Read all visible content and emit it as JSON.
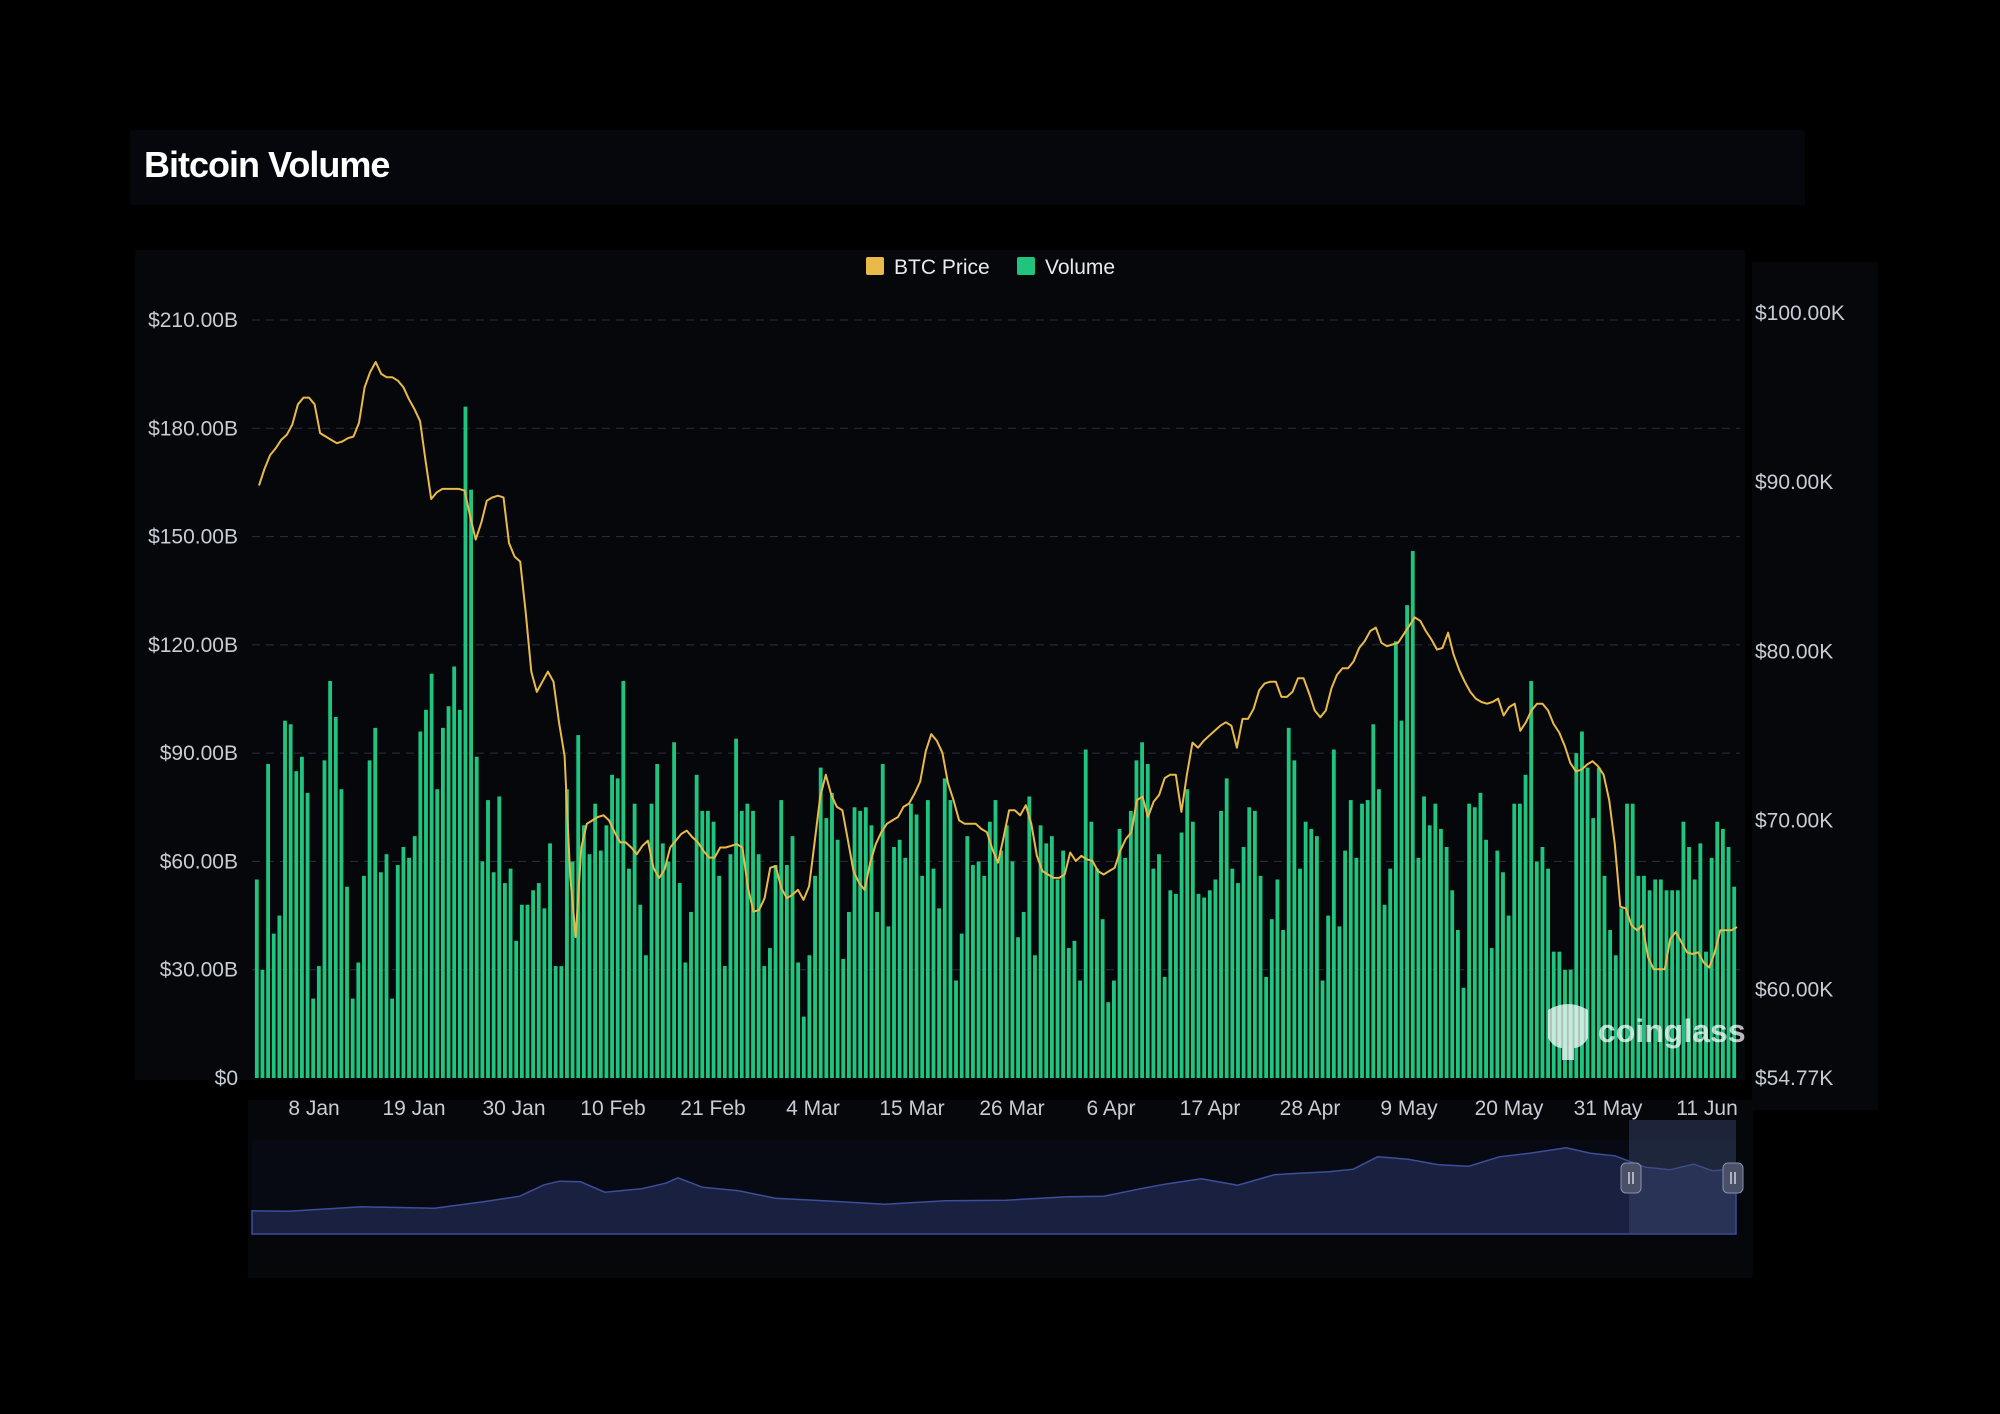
{
  "title": "Bitcoin Volume",
  "brand": "coinglass",
  "chart_data": {
    "type": "bar",
    "x_tick_labels": [
      "8 Jan",
      "19 Jan",
      "30 Jan",
      "10 Feb",
      "21 Feb",
      "4 Mar",
      "15 Mar",
      "26 Mar",
      "6 Apr",
      "17 Apr",
      "28 Apr",
      "9 May",
      "20 May",
      "31 May",
      "11 Jun"
    ],
    "ylim": [
      0,
      210
    ],
    "y_tick_labels": [
      "$0",
      "$30.00B",
      "$60.00B",
      "$90.00B",
      "$120.00B",
      "$150.00B",
      "$180.00B",
      "$210.00B"
    ],
    "y2_tick_labels": [
      "$54.77K",
      "$60.00K",
      "$70.00K",
      "$80.00K",
      "$90.00K",
      "$100.00K"
    ],
    "y2_tick_values": [
      54.77,
      60,
      70,
      80,
      90,
      100
    ],
    "y2lim": [
      54.77,
      100
    ],
    "grid": true,
    "legend_position": "top-center",
    "series": [
      {
        "name": "BTC Price",
        "color": "#e9b949",
        "axis": "right",
        "unit": "$K",
        "values": [
          89.8,
          90.8,
          91.6,
          92.0,
          92.5,
          92.8,
          93.4,
          94.6,
          95.0,
          95.0,
          94.6,
          92.9,
          92.7,
          92.5,
          92.3,
          92.4,
          92.6,
          92.7,
          93.5,
          95.6,
          96.5,
          97.1,
          96.4,
          96.2,
          96.2,
          96.0,
          95.6,
          94.9,
          94.3,
          93.6,
          91.2,
          89.0,
          89.4,
          89.6,
          89.6,
          89.6,
          89.6,
          89.5,
          88.0,
          86.6,
          87.6,
          88.9,
          89.1,
          89.2,
          89.1,
          86.4,
          85.6,
          85.3,
          82.3,
          78.8,
          77.6,
          78.2,
          78.8,
          78.2,
          75.8,
          73.8,
          66.7,
          63.1,
          68.4,
          69.8,
          70.0,
          70.2,
          70.3,
          70.0,
          69.3,
          68.7,
          68.7,
          68.4,
          68.0,
          68.5,
          68.8,
          67.2,
          66.6,
          67.1,
          68.4,
          68.8,
          69.2,
          69.4,
          69.0,
          68.7,
          68.2,
          67.8,
          67.8,
          68.4,
          68.4,
          68.5,
          68.6,
          68.4,
          66.0,
          64.6,
          64.7,
          65.4,
          67.2,
          67.3,
          66.0,
          65.4,
          65.6,
          65.9,
          65.3,
          66.1,
          68.7,
          71.4,
          72.7,
          71.5,
          70.8,
          70.6,
          68.8,
          67.0,
          66.3,
          65.9,
          67.5,
          68.6,
          69.3,
          69.8,
          70.0,
          70.2,
          70.8,
          71.0,
          71.6,
          72.3,
          74.1,
          75.1,
          74.7,
          74.0,
          72.2,
          71.2,
          70.0,
          69.8,
          69.8,
          69.8,
          69.5,
          69.3,
          68.3,
          67.5,
          69.0,
          70.6,
          70.6,
          70.3,
          70.9,
          69.8,
          67.9,
          67.0,
          66.8,
          66.6,
          66.6,
          66.8,
          68.1,
          67.6,
          67.9,
          67.7,
          67.6,
          67.0,
          66.8,
          67.0,
          67.2,
          68.2,
          68.9,
          69.3,
          71.2,
          71.4,
          70.2,
          71.1,
          71.5,
          72.5,
          72.7,
          72.7,
          70.5,
          72.7,
          74.6,
          74.3,
          74.7,
          75.0,
          75.3,
          75.6,
          75.8,
          75.6,
          74.3,
          76.0,
          76.0,
          76.6,
          77.7,
          78.1,
          78.2,
          78.2,
          77.3,
          77.3,
          77.6,
          78.4,
          78.4,
          77.5,
          76.5,
          76.1,
          76.5,
          77.8,
          78.6,
          79.0,
          79.0,
          79.4,
          80.2,
          80.6,
          81.2,
          81.4,
          80.5,
          80.3,
          80.4,
          80.5,
          81.0,
          81.5,
          82.0,
          81.8,
          81.2,
          80.7,
          80.1,
          80.2,
          81.1,
          79.8,
          78.9,
          78.2,
          77.6,
          77.2,
          77.0,
          76.9,
          77.0,
          77.2,
          76.2,
          76.7,
          76.9,
          75.3,
          75.8,
          76.5,
          76.9,
          76.9,
          76.5,
          75.7,
          75.2,
          74.4,
          73.4,
          72.9,
          73.0,
          73.3,
          73.5,
          73.2,
          72.7,
          71.2,
          68.6,
          64.9,
          64.8,
          63.8,
          63.5,
          63.8,
          61.9,
          61.2,
          61.2,
          61.2,
          63.0,
          63.4,
          62.8,
          62.2,
          62.1,
          62.2,
          61.6,
          61.3,
          62.2,
          63.5,
          63.5,
          63.5,
          63.7
        ]
      },
      {
        "name": "Volume",
        "color": "#1fc57e",
        "axis": "left",
        "unit": "$B",
        "values": [
          55,
          30,
          87,
          40,
          45,
          99,
          98,
          85,
          89,
          79,
          22,
          31,
          88,
          110,
          100,
          80,
          53,
          22,
          32,
          56,
          88,
          97,
          57,
          62,
          22,
          59,
          64,
          61,
          67,
          96,
          102,
          112,
          80,
          97,
          103,
          114,
          102,
          186,
          163,
          89,
          60,
          77,
          57,
          78,
          54,
          58,
          38,
          48,
          48,
          52,
          54,
          47,
          65,
          31,
          31,
          80,
          60,
          95,
          70,
          62,
          76,
          63,
          70,
          84,
          83,
          110,
          58,
          76,
          48,
          34,
          76,
          87,
          65,
          60,
          93,
          54,
          32,
          46,
          84,
          74,
          74,
          71,
          56,
          31,
          62,
          94,
          74,
          76,
          74,
          62,
          31,
          36,
          59,
          77,
          59,
          67,
          32,
          17,
          34,
          56,
          86,
          72,
          79,
          66,
          33,
          46,
          75,
          74,
          75,
          70,
          46,
          87,
          42,
          64,
          66,
          61,
          76,
          73,
          56,
          77,
          58,
          47,
          83,
          77,
          27,
          40,
          67,
          59,
          60,
          56,
          71,
          77,
          63,
          70,
          60,
          39,
          46,
          78,
          34,
          70,
          65,
          67,
          55,
          63,
          36,
          38,
          27,
          91,
          71,
          58,
          44,
          21,
          27,
          69,
          61,
          74,
          88,
          93,
          87,
          58,
          62,
          28,
          52,
          51,
          68,
          80,
          71,
          51,
          50,
          52,
          55,
          74,
          83,
          58,
          54,
          64,
          75,
          74,
          56,
          28,
          44,
          55,
          41,
          97,
          88,
          58,
          71,
          69,
          67,
          27,
          45,
          91,
          42,
          63,
          77,
          61,
          76,
          77,
          98,
          80,
          48,
          58,
          121,
          99,
          131,
          146,
          61,
          78,
          70,
          76,
          69,
          64,
          52,
          41,
          25,
          76,
          75,
          79,
          66,
          36,
          63,
          57,
          45,
          76,
          76,
          84,
          110,
          60,
          64,
          58,
          35,
          35,
          30,
          30,
          90,
          96,
          86,
          72,
          86,
          56,
          41,
          34,
          47,
          76,
          76,
          56,
          56,
          52,
          55,
          55,
          52,
          52,
          52,
          71,
          64,
          55,
          65,
          35,
          61,
          71,
          69,
          64,
          53
        ]
      }
    ]
  }
}
